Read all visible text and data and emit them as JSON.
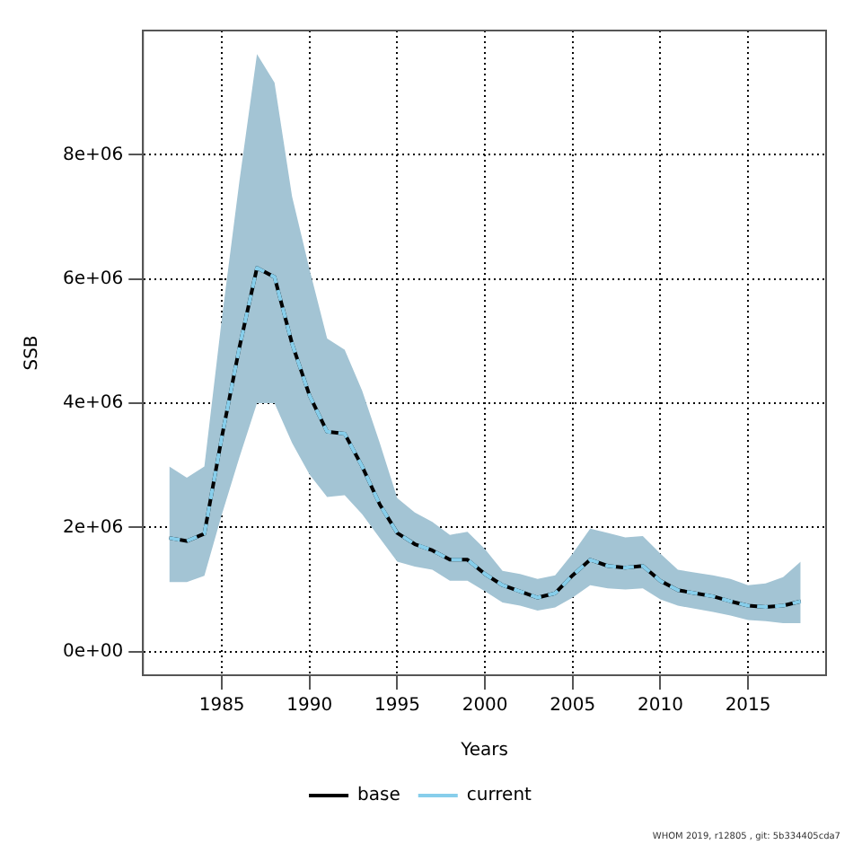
{
  "chart_data": {
    "type": "line",
    "xlabel": "Years",
    "ylabel": "SSB",
    "x": [
      1982,
      1983,
      1984,
      1985,
      1986,
      1987,
      1988,
      1989,
      1990,
      1991,
      1992,
      1993,
      1994,
      1995,
      1996,
      1997,
      1998,
      1999,
      2000,
      2001,
      2002,
      2003,
      2004,
      2005,
      2006,
      2007,
      2008,
      2009,
      2010,
      2011,
      2012,
      2013,
      2014,
      2015,
      2016,
      2017,
      2018
    ],
    "series": [
      {
        "name": "base",
        "color": "#000000",
        "line_style": "solid",
        "values": [
          1830000,
          1780000,
          1900000,
          3460000,
          4900000,
          6180000,
          6030000,
          4960000,
          4120000,
          3540000,
          3510000,
          2980000,
          2370000,
          1910000,
          1730000,
          1630000,
          1480000,
          1480000,
          1250000,
          1070000,
          970000,
          870000,
          940000,
          1230000,
          1480000,
          1380000,
          1350000,
          1380000,
          1140000,
          990000,
          940000,
          890000,
          810000,
          740000,
          720000,
          740000,
          810000
        ]
      },
      {
        "name": "current",
        "color": "#87ceeb",
        "line_style": "dashed",
        "values": [
          1830000,
          1780000,
          1900000,
          3460000,
          4900000,
          6180000,
          6030000,
          4960000,
          4120000,
          3540000,
          3510000,
          2980000,
          2370000,
          1910000,
          1730000,
          1630000,
          1480000,
          1480000,
          1250000,
          1070000,
          970000,
          870000,
          940000,
          1230000,
          1480000,
          1380000,
          1350000,
          1380000,
          1140000,
          990000,
          940000,
          890000,
          810000,
          740000,
          720000,
          740000,
          810000
        ],
        "lower": [
          1120000,
          1120000,
          1220000,
          2210000,
          3130000,
          4000000,
          4000000,
          3360000,
          2850000,
          2490000,
          2520000,
          2210000,
          1830000,
          1450000,
          1370000,
          1320000,
          1140000,
          1140000,
          970000,
          790000,
          740000,
          660000,
          710000,
          870000,
          1070000,
          1020000,
          1000000,
          1020000,
          840000,
          740000,
          690000,
          640000,
          580000,
          510000,
          490000,
          460000,
          460000
        ],
        "upper": [
          2980000,
          2800000,
          2980000,
          5370000,
          7580000,
          9620000,
          9160000,
          7330000,
          6150000,
          5040000,
          4860000,
          4200000,
          3360000,
          2470000,
          2240000,
          2090000,
          1880000,
          1930000,
          1650000,
          1300000,
          1250000,
          1170000,
          1230000,
          1580000,
          1980000,
          1910000,
          1840000,
          1860000,
          1580000,
          1320000,
          1270000,
          1230000,
          1170000,
          1070000,
          1100000,
          1200000,
          1450000
        ]
      }
    ],
    "xlim": [
      1980.5,
      2019.45
    ],
    "xticks": [
      1985,
      1990,
      1995,
      2000,
      2005,
      2010,
      2015
    ],
    "ylim": [
      -380000,
      10000000
    ],
    "yticks": [
      {
        "value": 0,
        "label": "0e+00"
      },
      {
        "value": 2000000,
        "label": "2e+06"
      },
      {
        "value": 4000000,
        "label": "4e+06"
      },
      {
        "value": 6000000,
        "label": "6e+06"
      },
      {
        "value": 8000000,
        "label": "8e+06"
      }
    ],
    "grid": true,
    "legend": "bottom",
    "marker": "none",
    "annotations": [
      "WHOM 2019, r12805 , git: 5b334405cda7"
    ]
  }
}
